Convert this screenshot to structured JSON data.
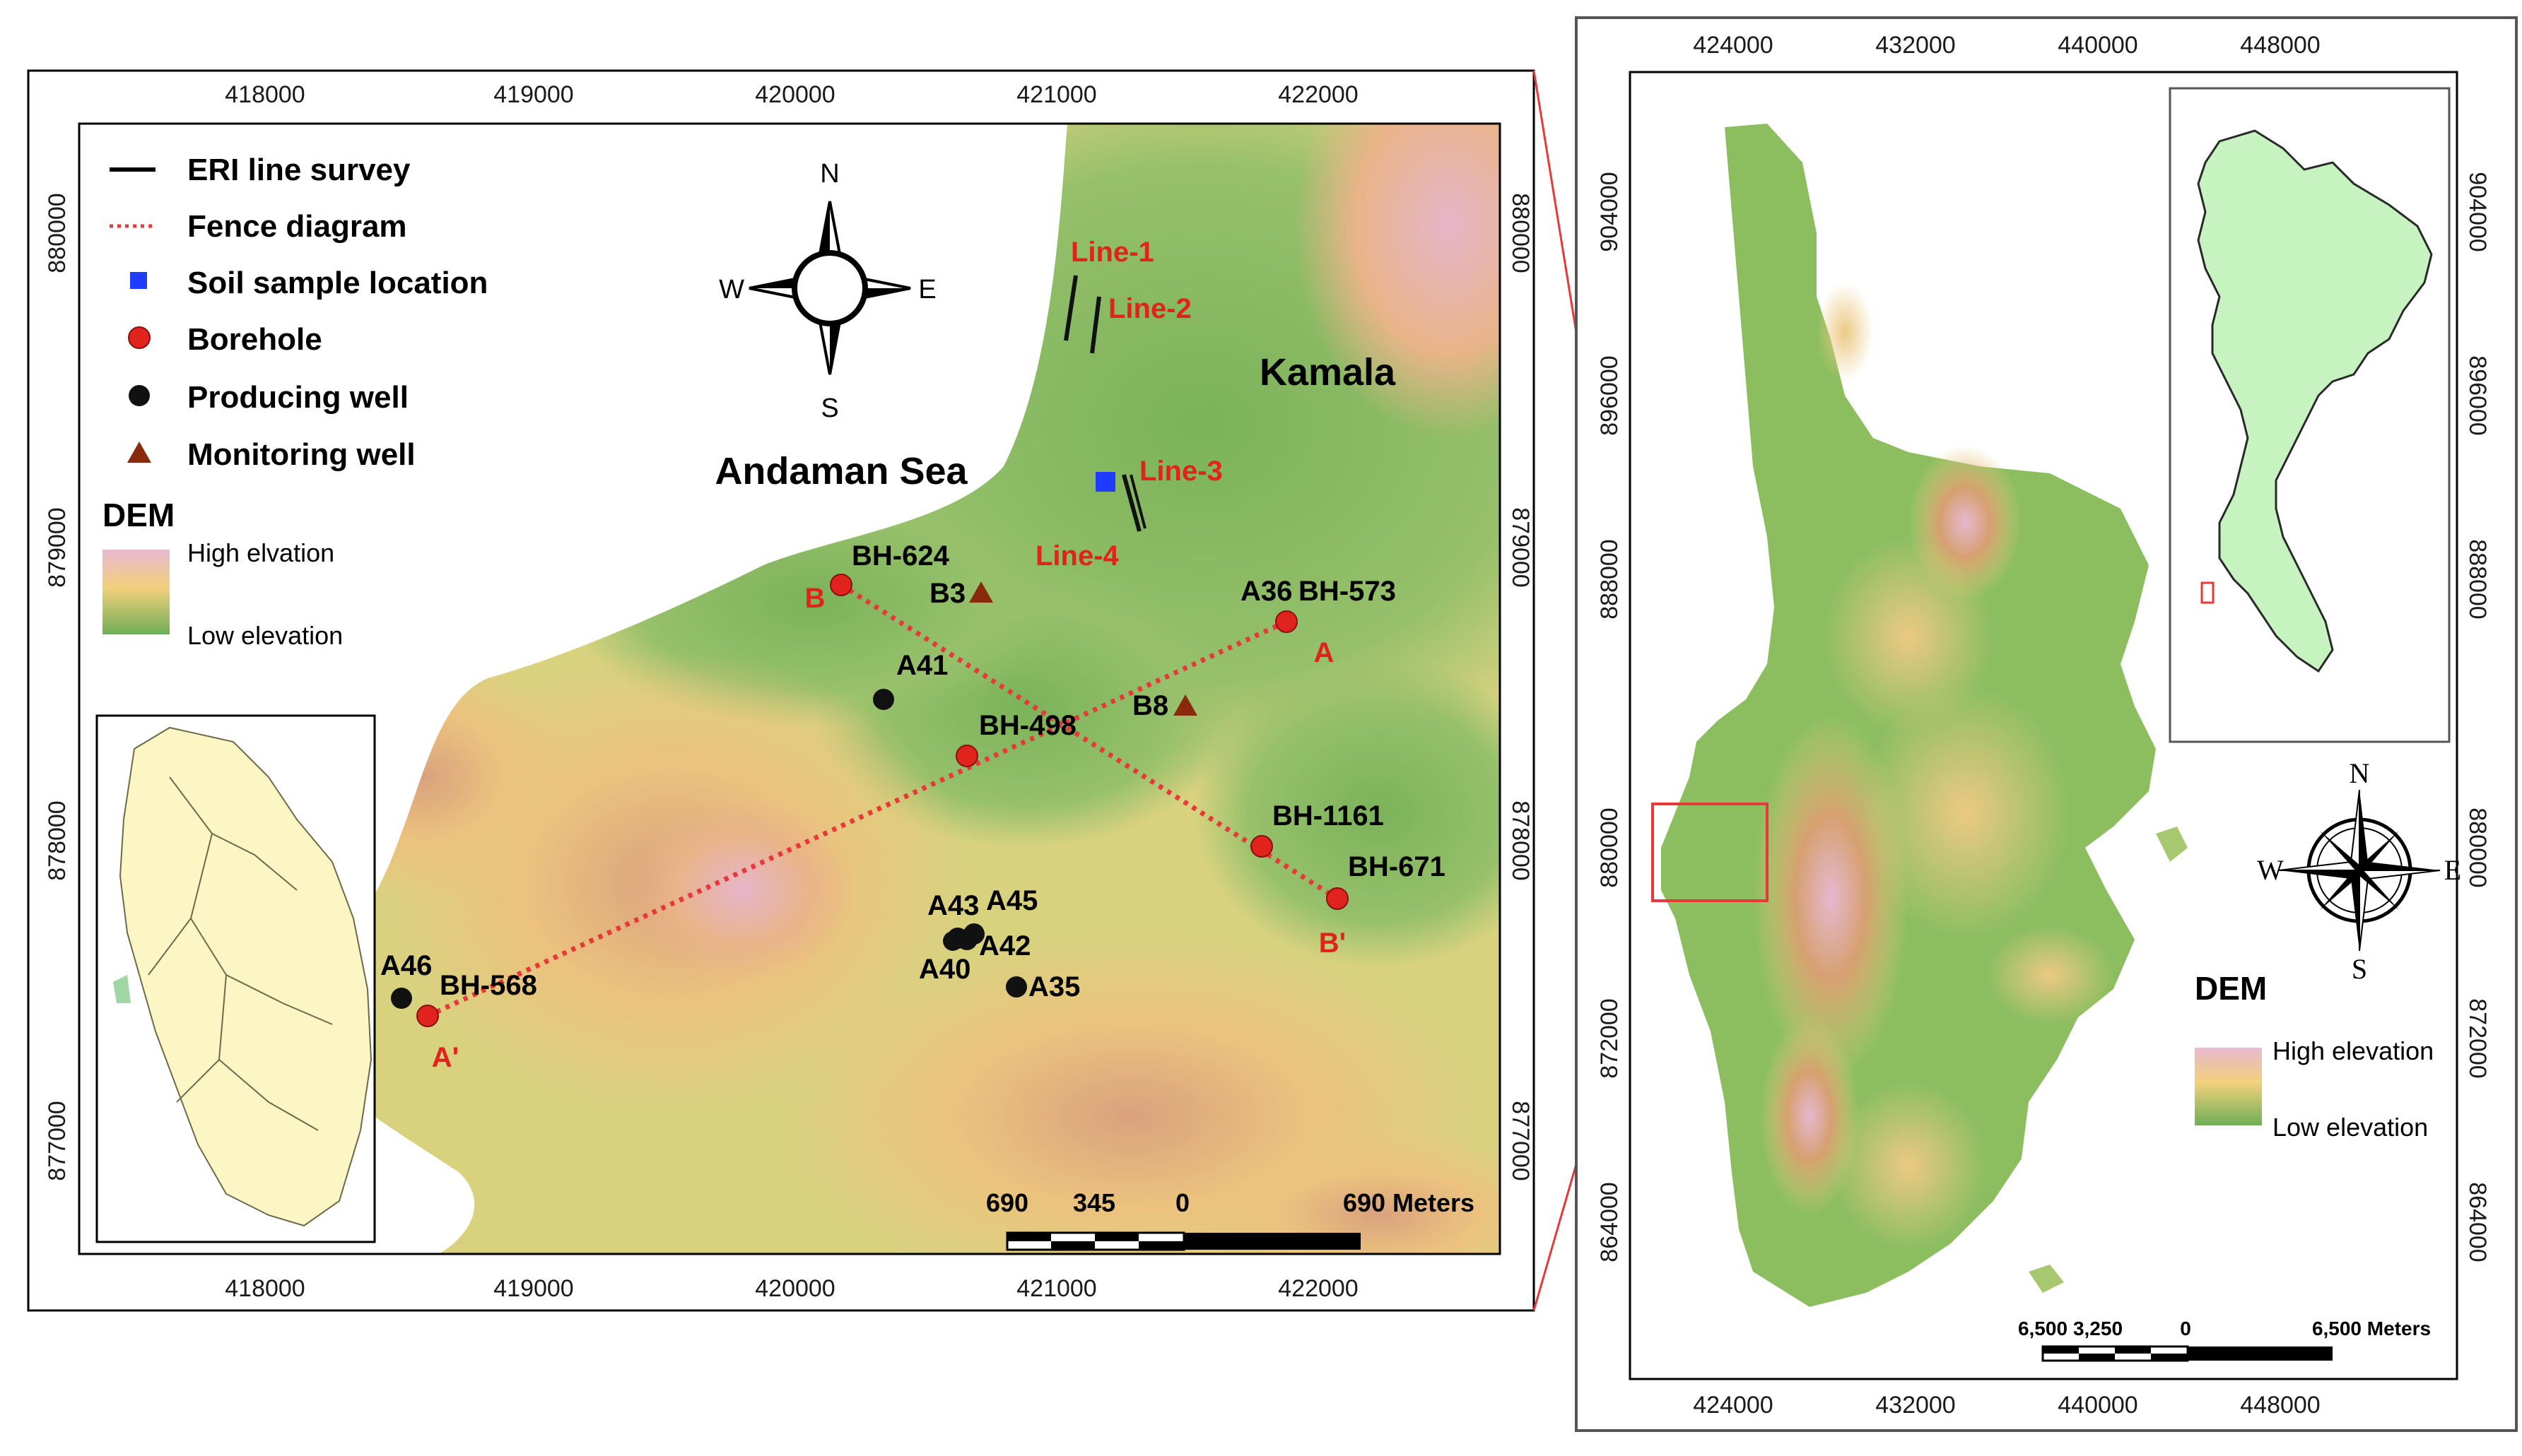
{
  "left_map": {
    "x_ticks": [
      "418000",
      "419000",
      "420000",
      "421000",
      "422000"
    ],
    "y_ticks": [
      "880000",
      "879000",
      "878000",
      "877000"
    ],
    "legend": {
      "eri": "ERI line survey",
      "fence": "Fence diagram",
      "soil": "Soil sample location",
      "borehole": "Borehole",
      "producing": "Producing well",
      "monitoring": "Monitoring well",
      "dem_title": "DEM",
      "high": "High elvation",
      "low": "Low elevation"
    },
    "sea_label": "Andaman Sea",
    "place_label": "Kamala",
    "compass": {
      "n": "N",
      "s": "S",
      "e": "E",
      "w": "W"
    },
    "lines": {
      "l1": "Line-1",
      "l2": "Line-2",
      "l3": "Line-3",
      "l4": "Line-4"
    },
    "boreholes": {
      "bh624": "BH-624",
      "bh573": "BH-573",
      "bh498": "BH-498",
      "bh1161": "BH-1161",
      "bh671": "BH-671",
      "bh568": "BH-568"
    },
    "wells": {
      "a36": "A36",
      "a41": "A41",
      "a43": "A43",
      "a45": "A45",
      "a42": "A42",
      "a40": "A40",
      "a35": "A35",
      "a46": "A46"
    },
    "monitoring_wells": {
      "b3": "B3",
      "b8": "B8"
    },
    "section_ends": {
      "a": "A",
      "a_prime": "A'",
      "b": "B",
      "b_prime": "B'"
    },
    "scale": {
      "t690": "690",
      "t345": "345",
      "t0": "0",
      "end": "690 Meters"
    }
  },
  "right_map": {
    "x_ticks": [
      "424000",
      "432000",
      "440000",
      "448000"
    ],
    "y_ticks": [
      "904000",
      "896000",
      "888000",
      "880000",
      "872000",
      "864000"
    ],
    "compass": {
      "n": "N",
      "s": "S",
      "e": "E",
      "w": "W"
    },
    "legend": {
      "dem_title": "DEM",
      "high": "High elevation",
      "low": "Low elevation"
    },
    "scale": {
      "t1": "6,500",
      "t2": "3,250",
      "t3": "0",
      "end": "6,500 Meters"
    }
  },
  "colors": {
    "borehole": "#e0231d",
    "fence": "#e8393a",
    "soil": "#1f3bff",
    "monitoring": "#8a2a0c",
    "dem_low": "#7fb45c",
    "dem_mid": "#f2d07c",
    "dem_high": "#e9b9d0"
  }
}
